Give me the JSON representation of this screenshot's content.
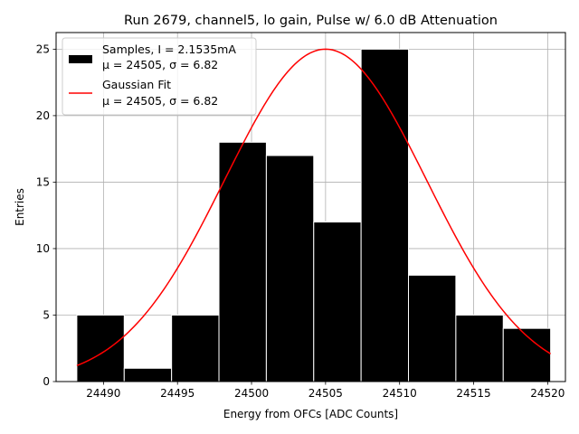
{
  "chart_data": {
    "type": "bar",
    "title": "Run 2679, channel5, lo gain, Pulse w/ 6.0 dB Attenuation",
    "xlabel": "Energy from OFCs [ADC Counts]",
    "ylabel": "Entries",
    "xlim": [
      24486.8,
      24521.2
    ],
    "ylim": [
      0,
      26.25
    ],
    "xticks": [
      24490,
      24495,
      24500,
      24505,
      24510,
      24515,
      24520
    ],
    "yticks": [
      0,
      5,
      10,
      15,
      20,
      25
    ],
    "grid": true,
    "legend_position": "top-left",
    "histogram": {
      "name_line1": "Samples, I = 2.1535mA",
      "name_line2": "μ = 24505, σ = 6.82",
      "color": "#000000",
      "edgecolor": "#ffffff",
      "bins": [
        {
          "x0": 24488.2,
          "x1": 24491.4,
          "count": 5
        },
        {
          "x0": 24491.4,
          "x1": 24494.6,
          "count": 1
        },
        {
          "x0": 24494.6,
          "x1": 24497.8,
          "count": 5
        },
        {
          "x0": 24497.8,
          "x1": 24501.0,
          "count": 18
        },
        {
          "x0": 24501.0,
          "x1": 24504.2,
          "count": 17
        },
        {
          "x0": 24504.2,
          "x1": 24507.4,
          "count": 12
        },
        {
          "x0": 24507.4,
          "x1": 24510.6,
          "count": 25
        },
        {
          "x0": 24510.6,
          "x1": 24513.8,
          "count": 8
        },
        {
          "x0": 24513.8,
          "x1": 24517.0,
          "count": 5
        },
        {
          "x0": 24517.0,
          "x1": 24520.2,
          "count": 4
        }
      ]
    },
    "fit": {
      "name_line1": "Gaussian Fit",
      "name_line2": "μ = 24505, σ = 6.82",
      "color": "#ff0000",
      "amplitude": 25,
      "mu": 24505,
      "sigma": 6.82,
      "x_range": [
        24488.2,
        24520.2
      ]
    }
  }
}
